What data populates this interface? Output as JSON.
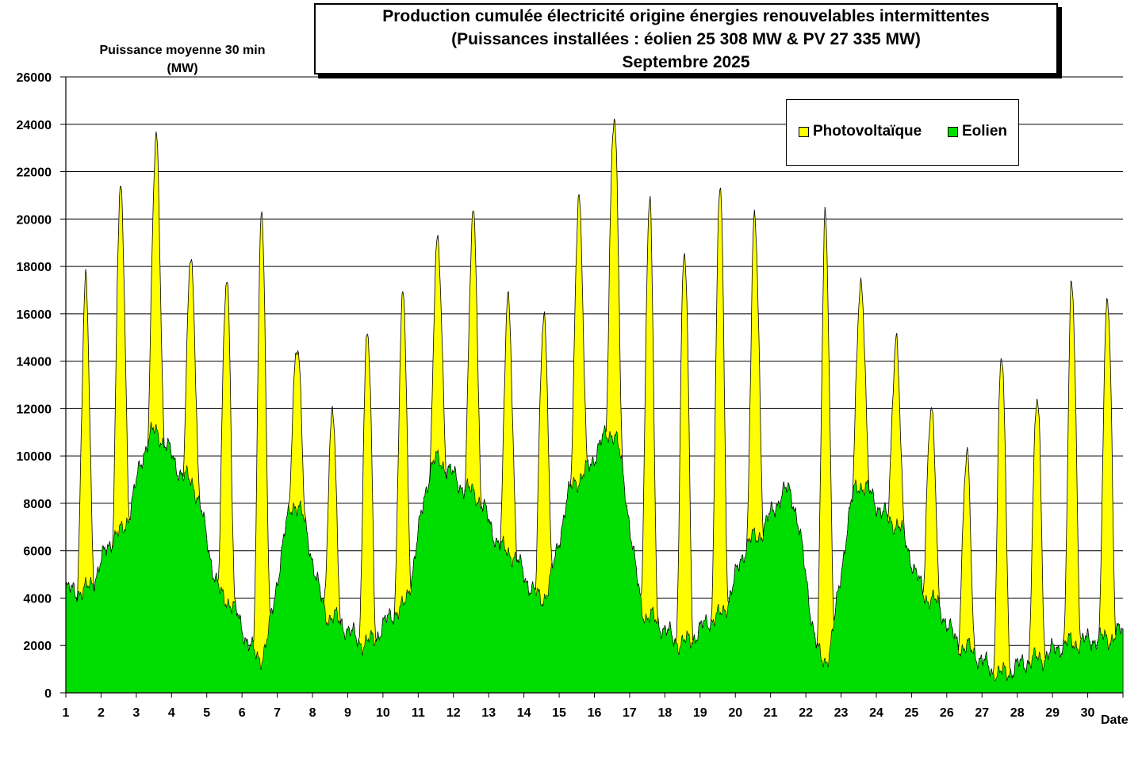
{
  "chart_data": {
    "type": "area",
    "stacked": true,
    "title": [
      "Production cumulée électricité origine énergies renouvelables intermittentes",
      "(Puissances installées : éolien 25 308 MW & PV 27 335 MW)",
      "Septembre 2025"
    ],
    "ylabel": [
      "Puissance moyenne 30 min",
      "(MW)"
    ],
    "xlabel": "Date",
    "ylim": [
      0,
      26000
    ],
    "y_ticks": [
      0,
      2000,
      4000,
      6000,
      8000,
      10000,
      12000,
      14000,
      16000,
      18000,
      20000,
      22000,
      24000,
      26000
    ],
    "x_ticks": [
      "1",
      "2",
      "3",
      "4",
      "5",
      "6",
      "7",
      "8",
      "9",
      "10",
      "11",
      "12",
      "13",
      "14",
      "15",
      "16",
      "17",
      "18",
      "19",
      "20",
      "21",
      "22",
      "23",
      "24",
      "25",
      "26",
      "27",
      "28",
      "29",
      "30"
    ],
    "grid": true,
    "legend_position": "top-right",
    "day_range": [
      1,
      31
    ],
    "series": [
      {
        "name": "Eolien",
        "color": "#00dd00",
        "note": "daily wind levels (MW), day 1..31",
        "levels": [
          4300,
          6700,
          11000,
          9000,
          4000,
          1500,
          8000,
          3200,
          2100,
          3500,
          9800,
          8500,
          6000,
          4000,
          9000,
          11000,
          3200,
          2100,
          3200,
          6500,
          8500,
          1300,
          8800,
          7200,
          4000,
          1900,
          800,
          1400,
          2100,
          2300,
          3000
        ]
      },
      {
        "name": "Photovoltaïque",
        "color": "#ffff00",
        "note": "total cumulated midday peak (MW) per day",
        "peaks": [
          18000,
          22500,
          24300,
          18700,
          18400,
          20700,
          14900,
          12200,
          16200,
          17600,
          19900,
          21200,
          17400,
          16700,
          21200,
          25200,
          21100,
          19800,
          22200,
          21000,
          8600,
          20800,
          18200,
          15000,
          12700,
          10200,
          14900,
          13100,
          17700,
          18000
        ]
      }
    ]
  },
  "legend": {
    "pv_label": "Photovoltaïque",
    "wind_label": "Eolien"
  }
}
